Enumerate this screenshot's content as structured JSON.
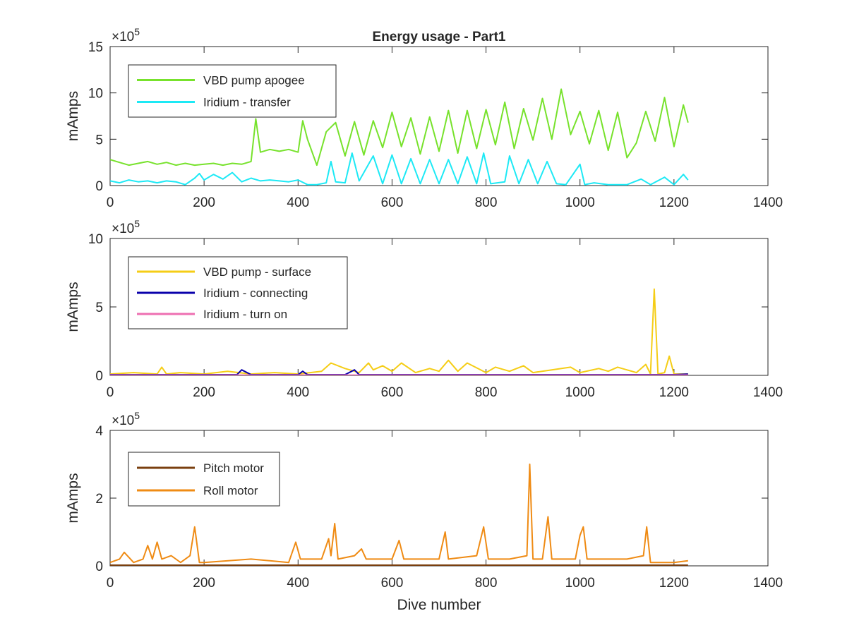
{
  "chart_data": [
    {
      "type": "line",
      "title": "Energy usage - Part1",
      "xlabel": "",
      "ylabel": "mAmps",
      "y_exponent": "×10^5",
      "xlim": [
        0,
        1400
      ],
      "ylim": [
        0,
        15
      ],
      "x_ticks": [
        "0",
        "200",
        "400",
        "600",
        "800",
        "1000",
        "1200",
        "1400"
      ],
      "y_ticks": [
        "0",
        "5",
        "10",
        "15"
      ],
      "legend_position": "top-left",
      "series": [
        {
          "name": "VBD pump apogee",
          "color": "#77e22c",
          "x": [
            0,
            20,
            40,
            60,
            80,
            100,
            120,
            140,
            160,
            180,
            200,
            220,
            240,
            260,
            280,
            300,
            310,
            320,
            340,
            360,
            380,
            400,
            410,
            420,
            440,
            460,
            480,
            500,
            520,
            540,
            560,
            580,
            600,
            620,
            640,
            660,
            680,
            700,
            720,
            740,
            760,
            780,
            800,
            820,
            840,
            860,
            880,
            900,
            920,
            940,
            960,
            980,
            1000,
            1020,
            1040,
            1060,
            1080,
            1100,
            1120,
            1140,
            1160,
            1180,
            1200,
            1220,
            1230
          ],
          "values": [
            2.8,
            2.5,
            2.2,
            2.4,
            2.6,
            2.3,
            2.5,
            2.2,
            2.4,
            2.2,
            2.3,
            2.4,
            2.2,
            2.4,
            2.3,
            2.6,
            7.2,
            3.6,
            3.9,
            3.7,
            3.9,
            3.6,
            7.0,
            5.0,
            2.2,
            5.8,
            6.8,
            3.2,
            6.9,
            3.3,
            7.0,
            4.1,
            7.9,
            4.2,
            7.3,
            3.4,
            7.4,
            3.7,
            8.1,
            3.5,
            8.1,
            4.0,
            8.2,
            4.4,
            9.0,
            4.0,
            8.3,
            4.9,
            9.4,
            5.0,
            10.4,
            5.5,
            8.0,
            4.5,
            8.1,
            3.8,
            7.9,
            3.0,
            4.6,
            8.0,
            4.8,
            9.5,
            4.2,
            8.7,
            6.8
          ]
        },
        {
          "name": "Iridium - transfer",
          "color": "#1de9f5",
          "x": [
            0,
            20,
            40,
            60,
            80,
            100,
            120,
            140,
            160,
            180,
            190,
            200,
            220,
            240,
            260,
            280,
            300,
            320,
            340,
            360,
            380,
            400,
            420,
            440,
            460,
            470,
            480,
            500,
            515,
            530,
            560,
            580,
            600,
            620,
            640,
            660,
            680,
            700,
            720,
            740,
            760,
            780,
            795,
            810,
            840,
            850,
            870,
            890,
            910,
            930,
            950,
            970,
            1000,
            1010,
            1030,
            1060,
            1100,
            1130,
            1150,
            1180,
            1200,
            1220,
            1230
          ],
          "values": [
            0.5,
            0.3,
            0.6,
            0.4,
            0.5,
            0.3,
            0.5,
            0.4,
            0.1,
            0.8,
            1.3,
            0.6,
            1.2,
            0.7,
            1.4,
            0.4,
            0.8,
            0.5,
            0.6,
            0.5,
            0.4,
            0.6,
            0.1,
            0.1,
            0.3,
            2.6,
            0.4,
            0.3,
            3.5,
            0.5,
            3.2,
            0.2,
            3.3,
            0.2,
            2.9,
            0.2,
            2.8,
            0.2,
            2.8,
            0.2,
            3.1,
            0.2,
            3.5,
            0.2,
            0.4,
            3.2,
            0.2,
            2.8,
            0.2,
            2.6,
            0.2,
            0.1,
            2.3,
            0.1,
            0.3,
            0.1,
            0.1,
            0.7,
            0.1,
            0.9,
            0.1,
            1.2,
            0.6
          ]
        }
      ]
    },
    {
      "type": "line",
      "title": "",
      "xlabel": "",
      "ylabel": "mAmps",
      "y_exponent": "×10^5",
      "xlim": [
        0,
        1400
      ],
      "ylim": [
        0,
        10
      ],
      "x_ticks": [
        "0",
        "200",
        "400",
        "600",
        "800",
        "1000",
        "1200",
        "1400"
      ],
      "y_ticks": [
        "0",
        "5",
        "10"
      ],
      "legend_position": "top-left",
      "series": [
        {
          "name": "VBD pump - surface",
          "color": "#f5cd16",
          "x": [
            0,
            50,
            100,
            110,
            120,
            150,
            200,
            250,
            300,
            350,
            400,
            450,
            470,
            500,
            530,
            550,
            560,
            580,
            600,
            620,
            650,
            680,
            700,
            720,
            740,
            760,
            800,
            820,
            850,
            880,
            900,
            940,
            980,
            1000,
            1040,
            1060,
            1080,
            1120,
            1140,
            1150,
            1158,
            1166,
            1180,
            1190,
            1200,
            1230
          ],
          "values": [
            0.1,
            0.2,
            0.1,
            0.6,
            0.1,
            0.2,
            0.1,
            0.3,
            0.1,
            0.2,
            0.1,
            0.3,
            0.9,
            0.5,
            0.2,
            0.9,
            0.4,
            0.7,
            0.3,
            0.9,
            0.2,
            0.5,
            0.3,
            1.1,
            0.3,
            0.9,
            0.2,
            0.6,
            0.3,
            0.7,
            0.2,
            0.4,
            0.6,
            0.2,
            0.5,
            0.3,
            0.6,
            0.2,
            0.8,
            0.1,
            6.3,
            0.1,
            0.2,
            1.4,
            0.1,
            0.1
          ]
        },
        {
          "name": "Iridium - connecting",
          "color": "#0a00ab",
          "x": [
            0,
            100,
            200,
            270,
            280,
            300,
            400,
            410,
            420,
            500,
            520,
            530,
            600,
            700,
            800,
            900,
            1000,
            1100,
            1200,
            1230
          ],
          "values": [
            0.05,
            0.05,
            0.05,
            0.05,
            0.4,
            0.05,
            0.05,
            0.3,
            0.05,
            0.05,
            0.4,
            0.05,
            0.05,
            0.05,
            0.05,
            0.05,
            0.05,
            0.05,
            0.05,
            0.1
          ]
        },
        {
          "name": "Iridium - turn on",
          "color": "#ee6fb1",
          "x": [
            0,
            200,
            400,
            600,
            800,
            1000,
            1200,
            1230
          ],
          "values": [
            0.02,
            0.02,
            0.02,
            0.02,
            0.02,
            0.02,
            0.02,
            0.02
          ]
        }
      ]
    },
    {
      "type": "line",
      "title": "",
      "xlabel": "Dive number",
      "ylabel": "mAmps",
      "y_exponent": "×10^5",
      "xlim": [
        0,
        1400
      ],
      "ylim": [
        0,
        4
      ],
      "x_ticks": [
        "0",
        "200",
        "400",
        "600",
        "800",
        "1000",
        "1200",
        "1400"
      ],
      "y_ticks": [
        "0",
        "2",
        "4"
      ],
      "legend_position": "top-left",
      "series": [
        {
          "name": "Pitch motor",
          "color": "#7a3f0f",
          "x": [
            0,
            200,
            400,
            600,
            800,
            1000,
            1200,
            1230
          ],
          "values": [
            0.02,
            0.02,
            0.02,
            0.02,
            0.02,
            0.02,
            0.02,
            0.02
          ]
        },
        {
          "name": "Roll motor",
          "color": "#ef8b14",
          "x": [
            0,
            20,
            30,
            50,
            70,
            80,
            90,
            100,
            110,
            130,
            150,
            170,
            180,
            190,
            200,
            300,
            380,
            395,
            405,
            450,
            465,
            470,
            478,
            485,
            520,
            535,
            545,
            600,
            615,
            625,
            700,
            713,
            720,
            780,
            795,
            805,
            850,
            887,
            893,
            900,
            920,
            932,
            940,
            990,
            1000,
            1007,
            1015,
            1100,
            1135,
            1142,
            1150,
            1200,
            1230
          ],
          "values": [
            0.1,
            0.2,
            0.4,
            0.1,
            0.2,
            0.6,
            0.2,
            0.7,
            0.2,
            0.3,
            0.1,
            0.3,
            1.15,
            0.1,
            0.1,
            0.2,
            0.1,
            0.7,
            0.2,
            0.2,
            0.8,
            0.3,
            1.25,
            0.2,
            0.3,
            0.5,
            0.2,
            0.2,
            0.75,
            0.2,
            0.2,
            1.0,
            0.2,
            0.3,
            1.15,
            0.2,
            0.2,
            0.3,
            3.0,
            0.2,
            0.2,
            1.45,
            0.2,
            0.2,
            0.9,
            1.15,
            0.2,
            0.2,
            0.3,
            1.15,
            0.1,
            0.1,
            0.15
          ]
        }
      ]
    }
  ]
}
